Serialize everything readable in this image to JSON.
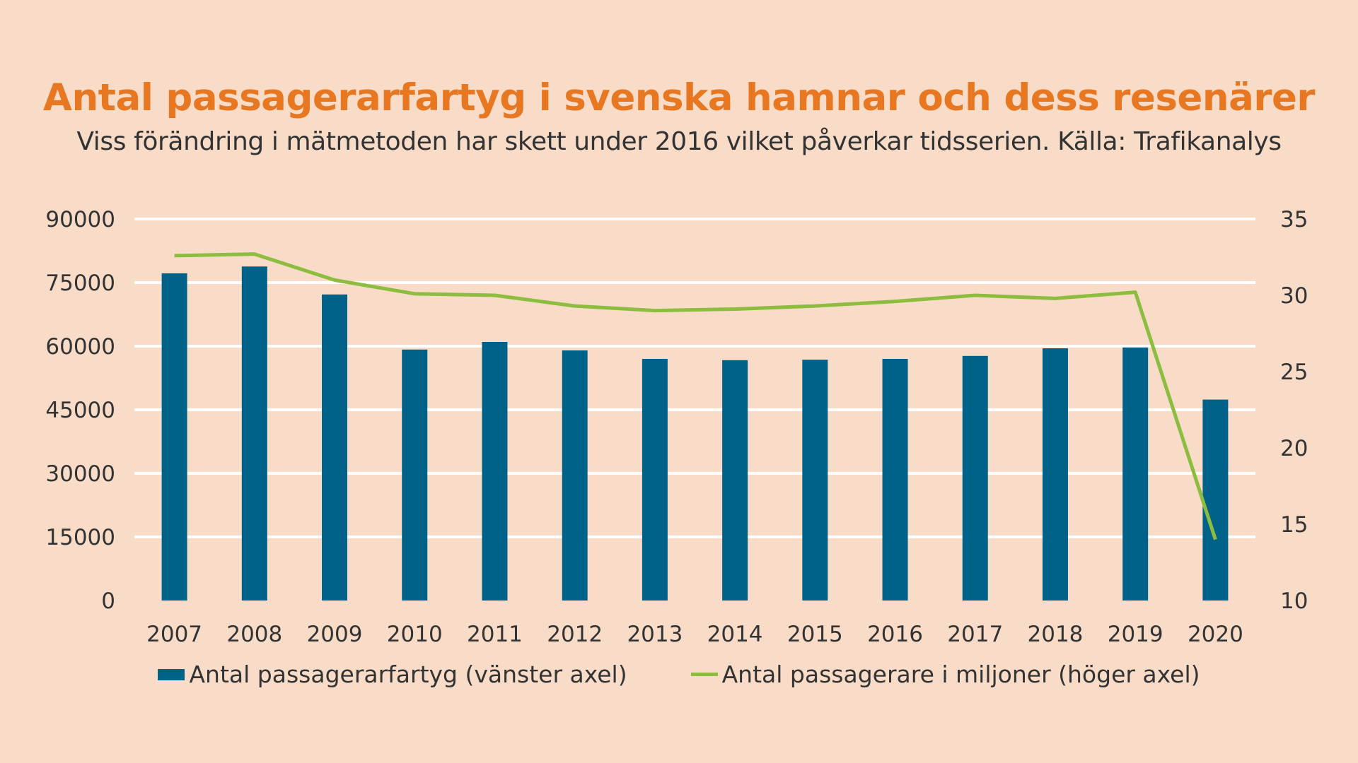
{
  "chart_data": {
    "type": "bar+line",
    "title": "Antal passagerarfartyg i svenska hamnar och dess resenärer",
    "subtitle": "Viss förändring i mätmetoden har skett under 2016 vilket påverkar tidsserien. Källa: Trafikanalys",
    "categories": [
      "2007",
      "2008",
      "2009",
      "2010",
      "2011",
      "2012",
      "2013",
      "2014",
      "2015",
      "2016",
      "2017",
      "2018",
      "2019",
      "2020"
    ],
    "series": [
      {
        "name": "Antal passagerarfartyg (vänster axel)",
        "type": "bar",
        "axis": "left",
        "color": "#006288",
        "values": [
          77200,
          78800,
          72200,
          59200,
          61000,
          59000,
          57000,
          56700,
          56800,
          57000,
          57700,
          59500,
          59700,
          47400
        ]
      },
      {
        "name": "Antal passagerare i miljoner (höger axel)",
        "type": "line",
        "axis": "right",
        "color": "#8cbd3f",
        "values": [
          32.6,
          32.7,
          31.0,
          30.1,
          30.0,
          29.3,
          29.0,
          29.1,
          29.3,
          29.6,
          30.0,
          29.8,
          30.2,
          14.0
        ]
      }
    ],
    "y_left": {
      "ylim": [
        0,
        90000
      ],
      "ticks": [
        0,
        15000,
        30000,
        45000,
        60000,
        75000,
        90000
      ]
    },
    "y_right": {
      "ylim": [
        10,
        35
      ],
      "ticks": [
        10,
        15,
        20,
        25,
        30,
        35
      ]
    },
    "grid": true,
    "legend": "bottom"
  }
}
